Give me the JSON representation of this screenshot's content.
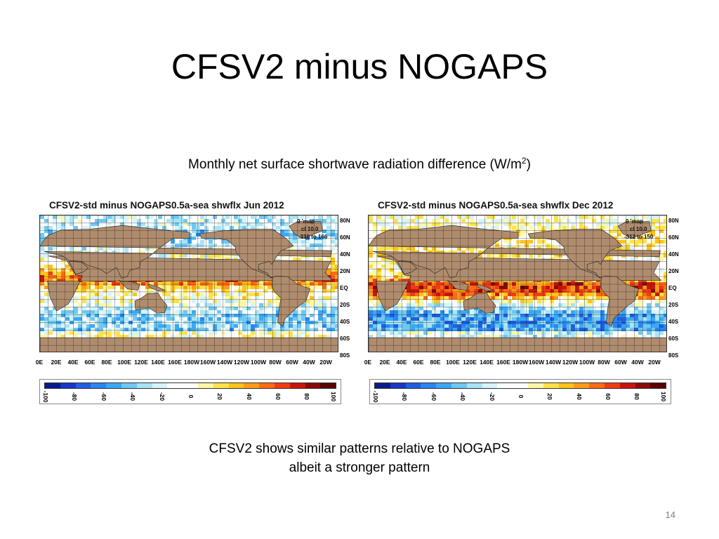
{
  "slide": {
    "title": "CFSV2 minus NOGAPS",
    "subtitle_main": "Monthly net surface shortwave radiation difference (W/m",
    "subtitle_sup": "2",
    "subtitle_end": ")",
    "caption_line1": "CFSV2 shows similar patterns relative to NOGAPS",
    "caption_line2": "albeit a stronger pattern",
    "page_number": "14"
  },
  "maps": [
    {
      "title": "CFSV2-std minus NOGAPS0.5a-sea shwflx Jun 2012",
      "tag_line1": "0   'map",
      "tag_line2": "cl 10.0",
      "tag_line3": "-310 to 166",
      "lat_labels": [
        "80N",
        "60N",
        "40N",
        "20N",
        "EQ",
        "20S",
        "40S",
        "60S",
        "80S"
      ],
      "lon_labels": [
        "0E",
        "20E",
        "40E",
        "60E",
        "80E",
        "100E",
        "120E",
        "140E",
        "160E",
        "180W",
        "160W",
        "140W",
        "120W",
        "100W",
        "80W",
        "60W",
        "40W",
        "20W"
      ]
    },
    {
      "title": "CFSV2-std minus NOGAPS0.5a-sea shwflx Dec 2012",
      "tag_line1": "0   'map",
      "tag_line2": "cl 10.0",
      "tag_line3": "-312 to 150",
      "lat_labels": [
        "80N",
        "60N",
        "40N",
        "20N",
        "EQ",
        "20S",
        "40S",
        "60S",
        "80S"
      ],
      "lon_labels": [
        "0E",
        "20E",
        "40E",
        "60E",
        "80E",
        "100E",
        "120E",
        "140E",
        "160E",
        "180W",
        "160W",
        "140W",
        "120W",
        "100W",
        "80W",
        "60W",
        "40W",
        "20W"
      ]
    }
  ],
  "colorbar": {
    "labels": [
      "-100",
      "-80",
      "-60",
      "-40",
      "-20",
      "0",
      "20",
      "40",
      "60",
      "80",
      "100"
    ],
    "colors": [
      "#0a1a8c",
      "#1836c8",
      "#1f5fe0",
      "#2a86f0",
      "#3aa8f5",
      "#6ec8f5",
      "#a8e4f5",
      "#d6f4fa",
      "#ffffff",
      "#ffffff",
      "#fff7a8",
      "#ffe24a",
      "#ffc21a",
      "#ff9a1a",
      "#ff6a14",
      "#f03c10",
      "#c8160a",
      "#8a0a0a",
      "#5a0404"
    ]
  },
  "colors": {
    "land": "#b08c6e",
    "grid": "#222222",
    "ocean_neutral": "#ffffff"
  }
}
